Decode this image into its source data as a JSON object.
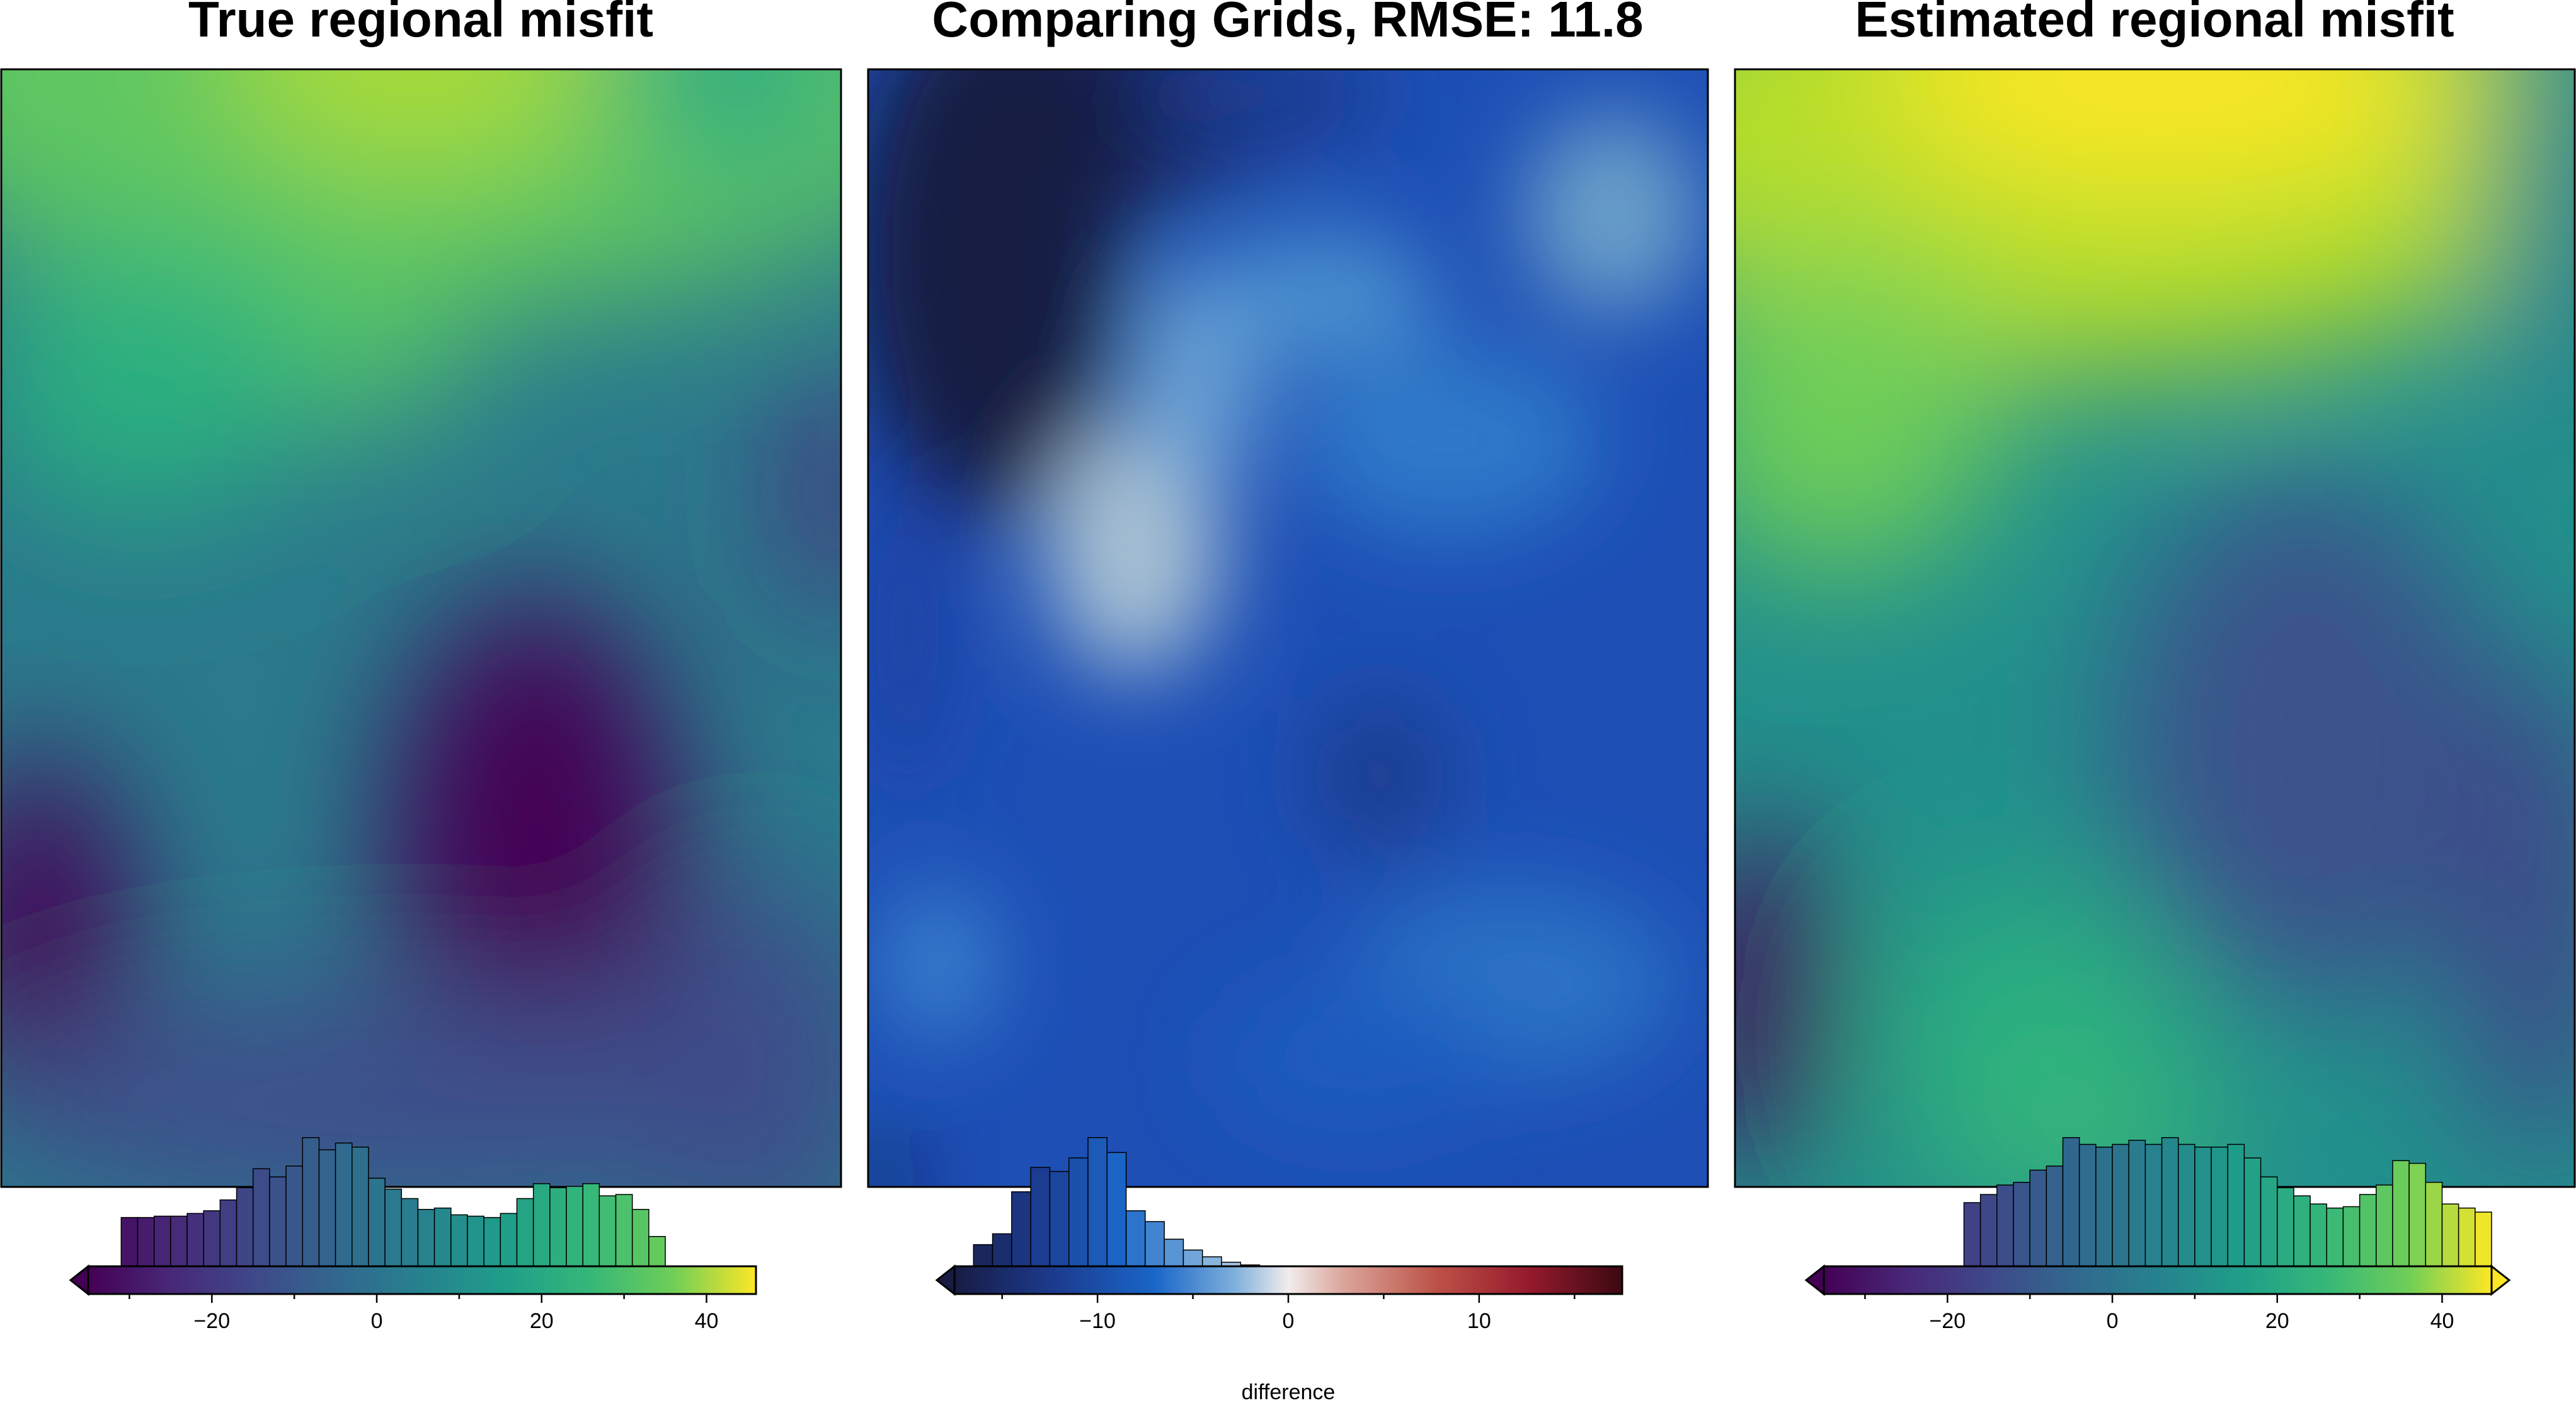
{
  "chart_data": [
    {
      "type": "heatmap",
      "title": "True regional misfit",
      "colormap": "viridis",
      "value_range": [
        -35,
        46
      ],
      "extend": "min",
      "colorbar": {
        "ticks": [
          -20,
          0,
          20,
          40
        ],
        "tick_labels": [
          "−20",
          "0",
          "20",
          "40"
        ],
        "label": ""
      },
      "histogram": [
        {
          "x": -30.0,
          "count": 0.36
        },
        {
          "x": -28.0,
          "count": 0.36
        },
        {
          "x": -26.0,
          "count": 0.37
        },
        {
          "x": -24.0,
          "count": 0.37
        },
        {
          "x": -22.0,
          "count": 0.39
        },
        {
          "x": -20.0,
          "count": 0.41
        },
        {
          "x": -18.0,
          "count": 0.49
        },
        {
          "x": -16.0,
          "count": 0.58
        },
        {
          "x": -14.0,
          "count": 0.72
        },
        {
          "x": -12.0,
          "count": 0.66
        },
        {
          "x": -10.0,
          "count": 0.74
        },
        {
          "x": -8.0,
          "count": 0.95
        },
        {
          "x": -6.0,
          "count": 0.86
        },
        {
          "x": -4.0,
          "count": 0.91
        },
        {
          "x": -2.0,
          "count": 0.88
        },
        {
          "x": 0.0,
          "count": 0.65
        },
        {
          "x": 2.0,
          "count": 0.57
        },
        {
          "x": 4.0,
          "count": 0.5
        },
        {
          "x": 6.0,
          "count": 0.42
        },
        {
          "x": 8.0,
          "count": 0.43
        },
        {
          "x": 10.0,
          "count": 0.38
        },
        {
          "x": 12.0,
          "count": 0.37
        },
        {
          "x": 14.0,
          "count": 0.36
        },
        {
          "x": 16.0,
          "count": 0.39
        },
        {
          "x": 18.0,
          "count": 0.5
        },
        {
          "x": 20.0,
          "count": 0.61
        },
        {
          "x": 22.0,
          "count": 0.58
        },
        {
          "x": 24.0,
          "count": 0.59
        },
        {
          "x": 26.0,
          "count": 0.61
        },
        {
          "x": 28.0,
          "count": 0.52
        },
        {
          "x": 30.0,
          "count": 0.53
        },
        {
          "x": 32.0,
          "count": 0.42
        },
        {
          "x": 34.0,
          "count": 0.22
        }
      ]
    },
    {
      "type": "heatmap",
      "title": "Comparing Grids, RMSE: 11.8",
      "colormap": "balance",
      "value_range": [
        -17.5,
        17.5
      ],
      "extend": "min",
      "colorbar": {
        "ticks": [
          -10,
          0,
          10
        ],
        "tick_labels": [
          "−10",
          "0",
          "10"
        ],
        "label": "difference"
      },
      "histogram": [
        {
          "x": -16.0,
          "count": 0.16
        },
        {
          "x": -15.0,
          "count": 0.24
        },
        {
          "x": -14.0,
          "count": 0.55
        },
        {
          "x": -13.0,
          "count": 0.73
        },
        {
          "x": -12.0,
          "count": 0.7
        },
        {
          "x": -11.0,
          "count": 0.8
        },
        {
          "x": -10.0,
          "count": 0.95
        },
        {
          "x": -9.0,
          "count": 0.84
        },
        {
          "x": -8.0,
          "count": 0.41
        },
        {
          "x": -7.0,
          "count": 0.33
        },
        {
          "x": -6.0,
          "count": 0.2
        },
        {
          "x": -5.0,
          "count": 0.12
        },
        {
          "x": -4.0,
          "count": 0.07
        },
        {
          "x": -3.0,
          "count": 0.03
        },
        {
          "x": -2.0,
          "count": 0.01
        }
      ]
    },
    {
      "type": "heatmap",
      "title": "Estimated regional misfit",
      "colormap": "viridis",
      "value_range": [
        -35,
        46
      ],
      "extend": "both",
      "colorbar": {
        "ticks": [
          -20,
          0,
          20,
          40
        ],
        "tick_labels": [
          "−20",
          "0",
          "20",
          "40"
        ],
        "label": ""
      },
      "histogram": [
        {
          "x": -17.0,
          "count": 0.47
        },
        {
          "x": -15.0,
          "count": 0.53
        },
        {
          "x": -13.0,
          "count": 0.6
        },
        {
          "x": -11.0,
          "count": 0.62
        },
        {
          "x": -9.0,
          "count": 0.71
        },
        {
          "x": -7.0,
          "count": 0.74
        },
        {
          "x": -5.0,
          "count": 0.95
        },
        {
          "x": -3.0,
          "count": 0.9
        },
        {
          "x": -1.0,
          "count": 0.88
        },
        {
          "x": 1.0,
          "count": 0.9
        },
        {
          "x": 3.0,
          "count": 0.93
        },
        {
          "x": 5.0,
          "count": 0.9
        },
        {
          "x": 7.0,
          "count": 0.95
        },
        {
          "x": 9.0,
          "count": 0.9
        },
        {
          "x": 11.0,
          "count": 0.88
        },
        {
          "x": 13.0,
          "count": 0.88
        },
        {
          "x": 15.0,
          "count": 0.9
        },
        {
          "x": 17.0,
          "count": 0.8
        },
        {
          "x": 19.0,
          "count": 0.66
        },
        {
          "x": 21.0,
          "count": 0.58
        },
        {
          "x": 23.0,
          "count": 0.52
        },
        {
          "x": 25.0,
          "count": 0.46
        },
        {
          "x": 27.0,
          "count": 0.43
        },
        {
          "x": 29.0,
          "count": 0.44
        },
        {
          "x": 31.0,
          "count": 0.53
        },
        {
          "x": 33.0,
          "count": 0.6
        },
        {
          "x": 35.0,
          "count": 0.78
        },
        {
          "x": 37.0,
          "count": 0.76
        },
        {
          "x": 39.0,
          "count": 0.62
        },
        {
          "x": 41.0,
          "count": 0.46
        },
        {
          "x": 43.0,
          "count": 0.43
        },
        {
          "x": 45.0,
          "count": 0.4
        }
      ]
    }
  ]
}
